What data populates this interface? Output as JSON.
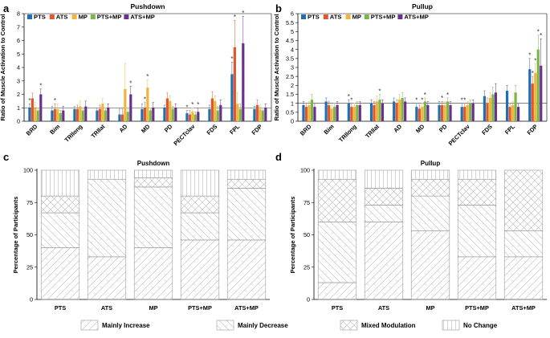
{
  "chart_data": [
    {
      "panel": "a",
      "type": "bar",
      "title": "Pushdown",
      "ylabel": "Ratio of Muscle Activation to Control",
      "xlabel": "",
      "ylim": [
        0,
        8
      ],
      "yticks": [
        0,
        1,
        2,
        3,
        4,
        5,
        6,
        7,
        8
      ],
      "reference_line": 1,
      "categories": [
        "BRD",
        "Bim",
        "TRIlong",
        "TRIlat",
        "AD",
        "MD",
        "PD",
        "PECTclav",
        "FDS",
        "FPL",
        "FDP"
      ],
      "series": [
        {
          "name": "PTS",
          "color": "#1f6fb4",
          "values": [
            1.0,
            0.8,
            0.9,
            0.8,
            0.5,
            0.9,
            1.0,
            0.6,
            0.9,
            3.5,
            0.9
          ],
          "errors": [
            0.3,
            0.3,
            0.2,
            0.2,
            0.4,
            0.4,
            0.2,
            0.2,
            0.3,
            0.9,
            0.2
          ]
        },
        {
          "name": "ATS",
          "color": "#e2572a",
          "values": [
            1.7,
            0.9,
            0.9,
            0.9,
            0.5,
            1.0,
            1.7,
            0.5,
            1.7,
            5.5,
            1.2
          ],
          "errors": [
            0.4,
            0.4,
            0.3,
            0.3,
            0.4,
            0.4,
            0.4,
            0.3,
            0.5,
            2.0,
            0.4
          ]
        },
        {
          "name": "MP",
          "color": "#f1b43c",
          "values": [
            1.0,
            0.9,
            1.1,
            1.3,
            2.4,
            2.5,
            1.5,
            0.7,
            1.5,
            1.3,
            0.9
          ],
          "errors": [
            0.4,
            0.4,
            0.4,
            0.4,
            1.9,
            0.6,
            0.4,
            0.3,
            0.4,
            0.8,
            0.3
          ]
        },
        {
          "name": "PTS+MP",
          "color": "#7ab648",
          "values": [
            0.8,
            0.6,
            0.8,
            0.8,
            0.7,
            0.8,
            0.9,
            0.5,
            0.8,
            0.9,
            0.8
          ],
          "errors": [
            0.2,
            0.2,
            0.2,
            0.2,
            0.3,
            0.2,
            0.2,
            0.2,
            0.3,
            0.4,
            0.2
          ]
        },
        {
          "name": "ATS+MP",
          "color": "#6b2f8f",
          "values": [
            2.0,
            0.8,
            1.1,
            1.0,
            2.0,
            1.0,
            1.0,
            0.7,
            1.2,
            5.8,
            1.0
          ],
          "errors": [
            0.4,
            0.3,
            0.4,
            0.3,
            0.6,
            0.4,
            0.3,
            0.3,
            0.4,
            2.0,
            0.3
          ]
        }
      ],
      "significance": [
        {
          "category": "BRD",
          "series": "PTS"
        },
        {
          "category": "BRD",
          "series": "ATS+MP"
        },
        {
          "category": "Bim",
          "series": "ATS"
        },
        {
          "category": "AD",
          "series": "ATS+MP"
        },
        {
          "category": "MD",
          "series": "MP"
        },
        {
          "category": "MD",
          "series": "ATS"
        },
        {
          "category": "PECTclav",
          "series": "PTS"
        },
        {
          "category": "PECTclav",
          "series": "MP"
        },
        {
          "category": "PECTclav",
          "series": "ATS+MP"
        },
        {
          "category": "FPL",
          "series": "PTS"
        },
        {
          "category": "FPL",
          "series": "ATS"
        },
        {
          "category": "FPL",
          "series": "ATS+MP"
        }
      ]
    },
    {
      "panel": "b",
      "type": "bar",
      "title": "Pullup",
      "ylabel": "Ratio of Muscle Activation to Control",
      "xlabel": "",
      "ylim": [
        0,
        6
      ],
      "yticks": [
        0,
        0.5,
        1,
        1.5,
        2,
        2.5,
        3,
        3.5,
        4,
        4.5,
        5,
        5.5,
        6
      ],
      "reference_line": 1,
      "categories": [
        "BRD",
        "Bim",
        "TRIlong",
        "TRIlat",
        "AD",
        "MD",
        "PD",
        "PECTclav",
        "FDS",
        "FPL",
        "FDP"
      ],
      "series": [
        {
          "name": "PTS",
          "color": "#1f6fb4",
          "values": [
            0.9,
            1.1,
            1.0,
            1.0,
            1.1,
            0.8,
            0.9,
            0.8,
            1.4,
            1.7,
            2.9
          ],
          "errors": [
            0.2,
            0.2,
            0.2,
            0.2,
            0.2,
            0.2,
            0.2,
            0.2,
            0.3,
            0.3,
            0.6
          ]
        },
        {
          "name": "ATS",
          "color": "#e2572a",
          "values": [
            0.8,
            0.9,
            0.8,
            0.9,
            1.0,
            0.7,
            0.9,
            0.8,
            1.0,
            0.8,
            2.1
          ],
          "errors": [
            0.2,
            0.2,
            0.2,
            0.2,
            0.2,
            0.2,
            0.2,
            0.2,
            0.3,
            0.2,
            0.4
          ]
        },
        {
          "name": "MP",
          "color": "#f1b43c",
          "values": [
            0.9,
            0.7,
            0.8,
            1.1,
            1.2,
            0.8,
            0.9,
            0.9,
            1.3,
            0.9,
            2.7
          ],
          "errors": [
            0.2,
            0.2,
            0.2,
            0.3,
            0.3,
            0.2,
            0.2,
            0.2,
            0.3,
            0.2,
            0.5
          ]
        },
        {
          "name": "PTS+MP",
          "color": "#7ab648",
          "values": [
            1.2,
            0.8,
            0.9,
            1.2,
            1.3,
            1.1,
            1.1,
            1.0,
            1.5,
            1.6,
            4.0
          ],
          "errors": [
            0.3,
            0.2,
            0.2,
            0.3,
            0.3,
            0.2,
            0.2,
            0.2,
            0.4,
            0.4,
            0.8
          ]
        },
        {
          "name": "ATS+MP",
          "color": "#6b2f8f",
          "values": [
            0.8,
            0.9,
            0.9,
            1.0,
            1.1,
            0.9,
            0.9,
            1.0,
            1.6,
            0.8,
            3.1
          ],
          "errors": [
            0.2,
            0.2,
            0.2,
            0.2,
            0.2,
            0.2,
            0.2,
            0.2,
            0.5,
            0.2,
            1.5
          ]
        }
      ],
      "significance": [
        {
          "category": "TRIlong",
          "series": "PTS"
        },
        {
          "category": "TRIlong",
          "series": "ATS"
        },
        {
          "category": "TRIlat",
          "series": "PTS+MP"
        },
        {
          "category": "MD",
          "series": "PTS"
        },
        {
          "category": "MD",
          "series": "MP"
        },
        {
          "category": "MD",
          "series": "PTS+MP"
        },
        {
          "category": "PD",
          "series": "ATS"
        },
        {
          "category": "PD",
          "series": "PTS+MP"
        },
        {
          "category": "PECTclav",
          "series": "PTS"
        },
        {
          "category": "PECTclav",
          "series": "ATS"
        },
        {
          "category": "FDP",
          "series": "PTS"
        },
        {
          "category": "FDP",
          "series": "ATS"
        },
        {
          "category": "FDP",
          "series": "MP"
        },
        {
          "category": "FDP",
          "series": "PTS+MP"
        },
        {
          "category": "FDP",
          "series": "ATS+MP"
        }
      ]
    },
    {
      "panel": "c",
      "type": "bar",
      "stacked": true,
      "title": "Pushdown",
      "ylabel": "Percentage of Participants",
      "xlabel": "",
      "ylim": [
        0,
        100
      ],
      "yticks": [
        0,
        25,
        50,
        75,
        100
      ],
      "categories": [
        "PTS",
        "ATS",
        "MP",
        "PTS+MP",
        "ATS+MP"
      ],
      "series": [
        {
          "name": "Mainly Increase",
          "values": [
            40,
            33,
            40,
            46,
            46
          ]
        },
        {
          "name": "Mainly Decrease",
          "values": [
            27,
            60,
            47,
            21,
            40
          ]
        },
        {
          "name": "Mixed Modulation",
          "values": [
            13,
            0,
            7,
            13,
            7
          ]
        },
        {
          "name": "No Change",
          "values": [
            20,
            7,
            6,
            20,
            7
          ]
        }
      ]
    },
    {
      "panel": "d",
      "type": "bar",
      "stacked": true,
      "title": "Pullup",
      "ylabel": "Percentage of Participants",
      "xlabel": "",
      "ylim": [
        0,
        100
      ],
      "yticks": [
        0,
        25,
        50,
        75,
        100
      ],
      "categories": [
        "PTS",
        "ATS",
        "MP",
        "PTS+MP",
        "ATS+MP"
      ],
      "series": [
        {
          "name": "Mainly Increase",
          "values": [
            13,
            60,
            53,
            33,
            33
          ]
        },
        {
          "name": "Mainly Decrease",
          "values": [
            47,
            13,
            27,
            40,
            20
          ]
        },
        {
          "name": "Mixed Modulation",
          "values": [
            33,
            13,
            13,
            20,
            47
          ]
        },
        {
          "name": "No Change",
          "values": [
            7,
            14,
            7,
            7,
            0
          ]
        }
      ]
    }
  ],
  "legend_bottom": [
    "Mainly Increase",
    "Mainly Decrease",
    "Mixed Modulation",
    "No Change"
  ],
  "significance_mark": "*"
}
